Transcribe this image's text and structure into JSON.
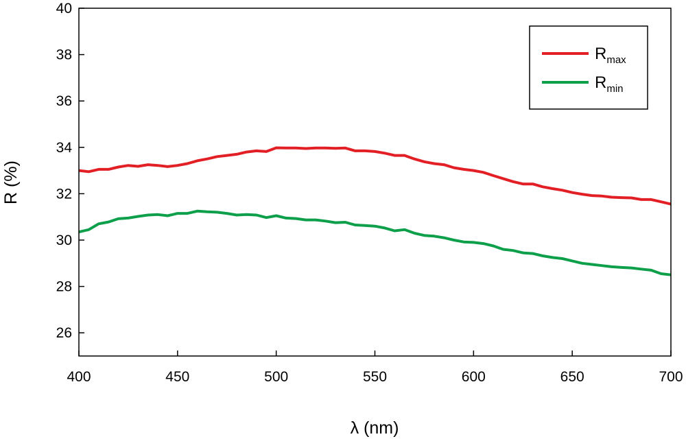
{
  "chart_data": {
    "type": "line",
    "xlabel": "λ (nm)",
    "ylabel": "R (%)",
    "xlim": [
      400,
      700
    ],
    "ylim": [
      25,
      40
    ],
    "xticks": [
      400,
      450,
      500,
      550,
      600,
      650,
      700
    ],
    "yticks": [
      26,
      28,
      30,
      32,
      34,
      36,
      38,
      40
    ],
    "grid": false,
    "legend_position": "top-right",
    "series": [
      {
        "name": "R",
        "subscript": "max",
        "color": "#e31f26",
        "x": [
          400,
          405,
          410,
          415,
          420,
          425,
          430,
          435,
          440,
          445,
          450,
          455,
          460,
          465,
          470,
          475,
          480,
          485,
          490,
          495,
          500,
          505,
          510,
          515,
          520,
          525,
          530,
          535,
          540,
          545,
          550,
          555,
          560,
          565,
          570,
          575,
          580,
          585,
          590,
          595,
          600,
          605,
          610,
          615,
          620,
          625,
          630,
          635,
          640,
          645,
          650,
          655,
          660,
          665,
          670,
          675,
          680,
          685,
          690,
          695,
          700
        ],
        "values": [
          33.0,
          32.95,
          33.05,
          33.05,
          33.15,
          33.22,
          33.18,
          33.25,
          33.22,
          33.17,
          33.22,
          33.3,
          33.42,
          33.5,
          33.6,
          33.65,
          33.7,
          33.8,
          33.85,
          33.82,
          33.98,
          33.97,
          33.97,
          33.95,
          33.97,
          33.97,
          33.96,
          33.97,
          33.85,
          33.85,
          33.82,
          33.75,
          33.65,
          33.65,
          33.5,
          33.38,
          33.3,
          33.25,
          33.12,
          33.05,
          33.0,
          32.92,
          32.78,
          32.65,
          32.52,
          32.42,
          32.42,
          32.3,
          32.22,
          32.15,
          32.05,
          31.98,
          31.92,
          31.9,
          31.85,
          31.83,
          31.82,
          31.75,
          31.75,
          31.65,
          31.55
        ]
      },
      {
        "name": "R",
        "subscript": "min",
        "color": "#0e9f4a",
        "x": [
          400,
          405,
          410,
          415,
          420,
          425,
          430,
          435,
          440,
          445,
          450,
          455,
          460,
          465,
          470,
          475,
          480,
          485,
          490,
          495,
          500,
          505,
          510,
          515,
          520,
          525,
          530,
          535,
          540,
          545,
          550,
          555,
          560,
          565,
          570,
          575,
          580,
          585,
          590,
          595,
          600,
          605,
          610,
          615,
          620,
          625,
          630,
          635,
          640,
          645,
          650,
          655,
          660,
          665,
          670,
          675,
          680,
          685,
          690,
          695,
          700
        ],
        "values": [
          30.35,
          30.45,
          30.7,
          30.78,
          30.92,
          30.95,
          31.02,
          31.08,
          31.1,
          31.05,
          31.15,
          31.15,
          31.25,
          31.22,
          31.2,
          31.15,
          31.08,
          31.1,
          31.08,
          30.97,
          31.05,
          30.95,
          30.93,
          30.87,
          30.87,
          30.82,
          30.75,
          30.77,
          30.65,
          30.63,
          30.6,
          30.52,
          30.4,
          30.45,
          30.3,
          30.2,
          30.17,
          30.1,
          30.0,
          29.92,
          29.9,
          29.85,
          29.75,
          29.6,
          29.55,
          29.45,
          29.42,
          29.32,
          29.25,
          29.2,
          29.1,
          29.0,
          28.95,
          28.9,
          28.85,
          28.82,
          28.8,
          28.75,
          28.7,
          28.55,
          28.5
        ]
      }
    ]
  }
}
